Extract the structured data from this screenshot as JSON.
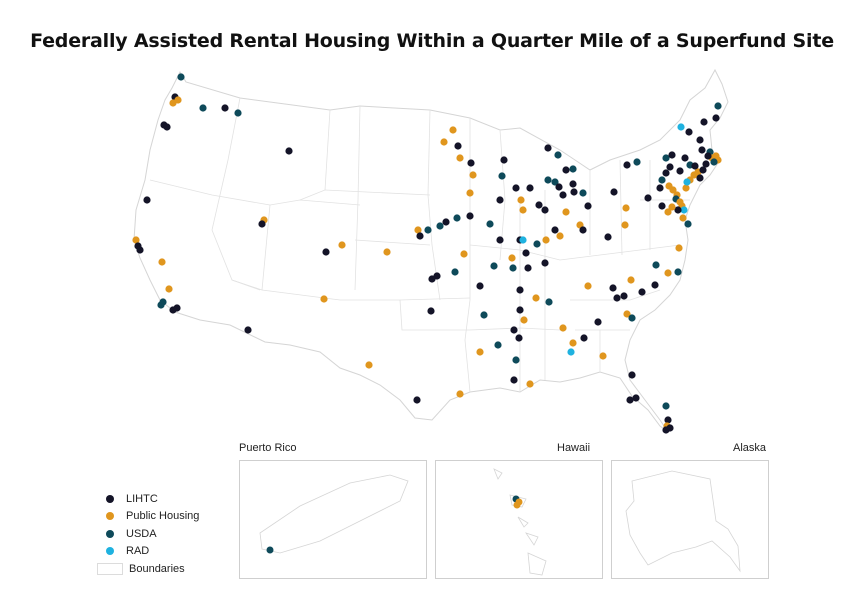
{
  "title": "Federally Assisted Rental Housing Within a Quarter Mile of a Superfund Site",
  "insets": [
    {
      "name": "Puerto Rico",
      "title_align": "left"
    },
    {
      "name": "Hawaii",
      "title_align": "right"
    },
    {
      "name": "Alaska",
      "title_align": "right"
    }
  ],
  "legend": {
    "items": [
      {
        "label": "LIHTC",
        "color": "#141428"
      },
      {
        "label": "Public Housing",
        "color": "#e0961e"
      },
      {
        "label": "USDA",
        "color": "#0e4a5a"
      },
      {
        "label": "RAD",
        "color": "#1fb2e0"
      }
    ],
    "boundaries_label": "Boundaries"
  },
  "colors": {
    "LIHTC": "#141428",
    "Public Housing": "#e0961e",
    "USDA": "#0e4a5a",
    "RAD": "#1fb2e0",
    "boundary": "#d9d9d9"
  }
}
